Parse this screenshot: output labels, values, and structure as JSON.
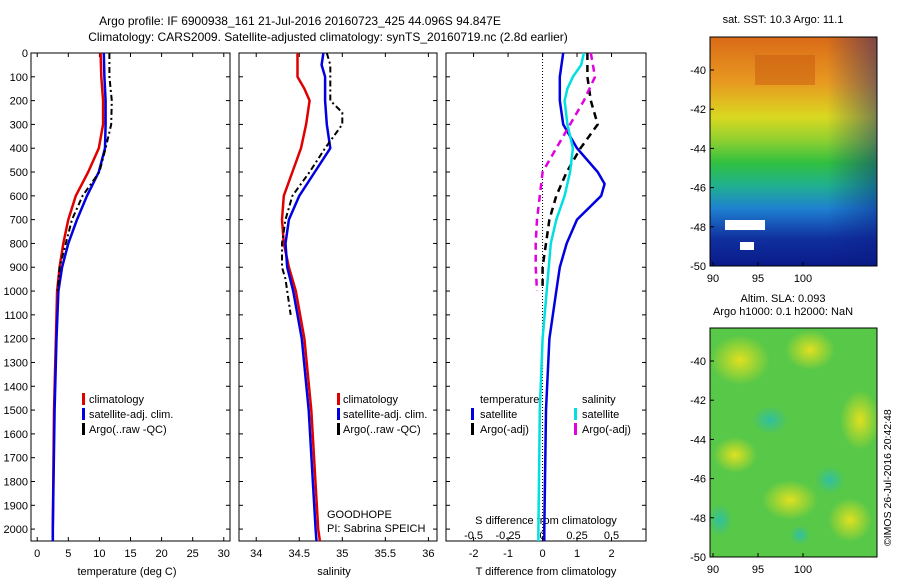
{
  "header": {
    "line1": "Argo profile: IF 6900938_161 21-Jul-2016 20160723_425 44.096S 94.847E",
    "line2": "Climatology: CARS2009. Satellite-adjusted climatology: synTS_20160719.nc (2.8d earlier)"
  },
  "colors": {
    "climatology": "#e00000",
    "satellite": "#0000e0",
    "argo": "#000000",
    "cyan": "#00e0e0",
    "magenta": "#e000e0"
  },
  "depth_ticks": [
    "0",
    "100",
    "200",
    "300",
    "400",
    "500",
    "600",
    "700",
    "800",
    "900",
    "1000",
    "1100",
    "1200",
    "1300",
    "1400",
    "1500",
    "1600",
    "1700",
    "1800",
    "1900",
    "2000"
  ],
  "legend": {
    "climatology": "climatology",
    "satellite_clim": "satellite-adj. clim.",
    "argo": "Argo(..raw -QC)"
  },
  "diff_legend": {
    "temp_header": "temperature",
    "sal_header": "salinity",
    "satellite": "satellite",
    "argo_adj": "Argo(-adj)"
  },
  "annotations": {
    "project": "GOODHOPE",
    "pi": "PI: Sabrina SPEICH",
    "credit": "©IMOS 26-Jul-2016 20:42:48"
  },
  "maps": {
    "sst_title": "sat. SST: 10.3 Argo: 11.1",
    "sla_title1": "Altim. SLA: 0.093",
    "sla_title2": "Argo h1000: 0.1 h2000: NaN",
    "lat_ticks": [
      "-40",
      "-42",
      "-44",
      "-46",
      "-48",
      "-50"
    ],
    "lon_ticks": [
      "90",
      "95",
      "100"
    ]
  },
  "chart_data": [
    {
      "type": "line",
      "title": "",
      "xlabel": "temperature (deg C)",
      "ylabel": "",
      "xlim": [
        -1,
        31
      ],
      "ylim": [
        2050,
        0
      ],
      "xticks": [
        "0",
        "5",
        "10",
        "15",
        "20",
        "25",
        "30"
      ],
      "series": [
        {
          "name": "climatology",
          "depth": [
            0,
            100,
            200,
            300,
            400,
            500,
            600,
            700,
            800,
            900,
            1000,
            1200,
            1500,
            2000,
            2050
          ],
          "values": [
            10.2,
            10.3,
            10.6,
            10.6,
            9.9,
            8.2,
            6.2,
            5.0,
            4.2,
            3.6,
            3.2,
            3.0,
            2.7,
            2.5,
            2.5
          ]
        },
        {
          "name": "satellite-adj. clim.",
          "depth": [
            0,
            100,
            200,
            300,
            400,
            500,
            600,
            700,
            800,
            900,
            1000,
            1200,
            1500,
            2000,
            2050
          ],
          "values": [
            10.7,
            10.8,
            11.0,
            11.0,
            10.9,
            9.9,
            8.0,
            6.4,
            5.0,
            4.0,
            3.4,
            3.1,
            2.8,
            2.5,
            2.5
          ]
        },
        {
          "name": "Argo(..raw -QC)",
          "depth": [
            0,
            100,
            200,
            300,
            400,
            500,
            600,
            700,
            800,
            900,
            1000
          ],
          "values": [
            11.6,
            11.6,
            12.0,
            11.9,
            11.0,
            10.0,
            7.3,
            5.6,
            4.6,
            3.6,
            3.3
          ]
        }
      ]
    },
    {
      "type": "line",
      "title": "",
      "xlabel": "salinity",
      "ylabel": "",
      "xlim": [
        33.8,
        36.1
      ],
      "ylim": [
        2050,
        0
      ],
      "xticks": [
        "34",
        "34.5",
        "35",
        "35.5",
        "36"
      ],
      "series": [
        {
          "name": "climatology",
          "depth": [
            0,
            100,
            150,
            200,
            300,
            400,
            500,
            600,
            700,
            800,
            900,
            1000,
            1200,
            1500,
            2000,
            2050
          ],
          "values": [
            34.48,
            34.48,
            34.56,
            34.62,
            34.58,
            34.52,
            34.42,
            34.32,
            34.3,
            34.32,
            34.38,
            34.46,
            34.56,
            34.64,
            34.72,
            34.74
          ]
        },
        {
          "name": "satellite-adj. clim.",
          "depth": [
            0,
            50,
            100,
            200,
            300,
            400,
            500,
            600,
            700,
            800,
            900,
            1000,
            1200,
            1500,
            2000,
            2050
          ],
          "values": [
            34.78,
            34.76,
            34.8,
            34.8,
            34.82,
            34.86,
            34.68,
            34.5,
            34.38,
            34.34,
            34.36,
            34.43,
            34.53,
            34.61,
            34.69,
            34.7
          ]
        },
        {
          "name": "Argo(..raw -QC)",
          "depth": [
            0,
            50,
            100,
            200,
            250,
            300,
            350,
            400,
            500,
            600,
            700,
            800,
            900,
            950,
            1000,
            1100
          ],
          "values": [
            34.82,
            34.86,
            34.86,
            34.86,
            35.0,
            35.0,
            34.9,
            34.8,
            34.62,
            34.42,
            34.34,
            34.3,
            34.3,
            34.34,
            34.36,
            34.4
          ]
        }
      ]
    },
    {
      "type": "line",
      "title": "",
      "xlabel": "T difference from climatology",
      "ylabel": "",
      "xlim": [
        -2.8,
        3.0
      ],
      "ylim": [
        2050,
        0
      ],
      "xticks": [
        "-2",
        "-1",
        "0",
        "1",
        "2"
      ],
      "x2label": "S difference from climatology",
      "x2lim": [
        -0.7,
        0.75
      ],
      "x2ticks": [
        "-0.5",
        "-0.25",
        "0",
        "0.25",
        "0.5"
      ],
      "series": [
        {
          "name": "satellite",
          "var": "temperature",
          "depth": [
            0,
            100,
            200,
            300,
            400,
            500,
            550,
            600,
            700,
            800,
            900,
            1000,
            1200,
            1500,
            2000,
            2050
          ],
          "values": [
            0.6,
            0.5,
            0.5,
            0.6,
            1.0,
            1.6,
            1.8,
            1.7,
            1.0,
            0.7,
            0.5,
            0.4,
            0.2,
            0.1,
            0.05,
            0.05
          ]
        },
        {
          "name": "Argo(-adj)",
          "var": "temperature",
          "depth": [
            0,
            50,
            100,
            200,
            300,
            400,
            500,
            600,
            700,
            800,
            900,
            1000
          ],
          "values": [
            1.3,
            1.3,
            1.3,
            1.4,
            1.6,
            1.1,
            0.7,
            0.4,
            0.2,
            0.1,
            0.0,
            0.0
          ]
        },
        {
          "name": "satellite",
          "var": "salinity",
          "depth": [
            0,
            50,
            100,
            150,
            200,
            300,
            400,
            500,
            600,
            700,
            800,
            1000,
            1200,
            1500,
            2000,
            2050
          ],
          "values": [
            0.3,
            0.28,
            0.22,
            0.18,
            0.16,
            0.18,
            0.22,
            0.2,
            0.16,
            0.1,
            0.06,
            0.03,
            0.0,
            -0.02,
            -0.03,
            -0.03
          ]
        },
        {
          "name": "Argo(-adj)",
          "var": "salinity",
          "depth": [
            0,
            100,
            200,
            300,
            400,
            500,
            600,
            700,
            800,
            900,
            1000
          ],
          "values": [
            0.35,
            0.38,
            0.3,
            0.2,
            0.1,
            0.0,
            -0.02,
            -0.04,
            -0.05,
            -0.05,
            -0.04
          ]
        }
      ]
    }
  ]
}
